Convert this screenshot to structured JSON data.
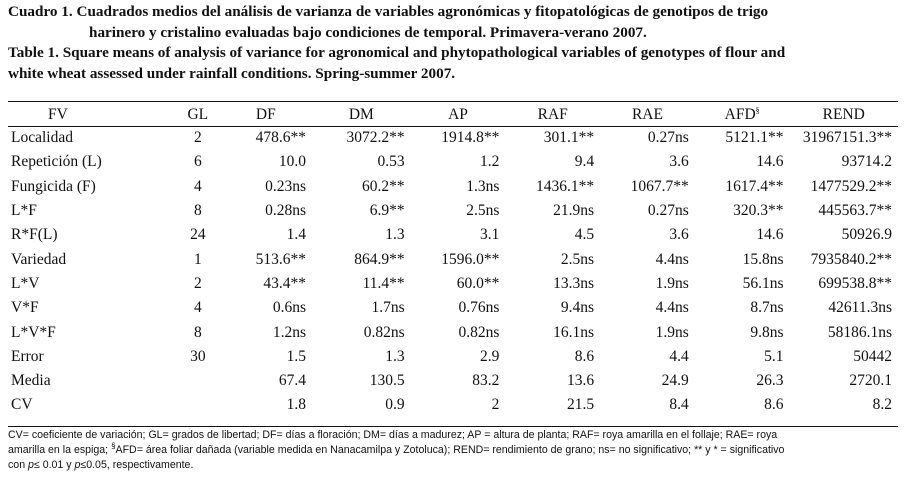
{
  "caption": {
    "es_line1": "Cuadro 1. Cuadrados medios del análisis de varianza de variables agronómicas y fitopatológicas de genotipos de trigo",
    "es_line2": "harinero y cristalino evaluadas bajo condiciones de temporal. Primavera-verano 2007.",
    "en_line1": "Table 1. Square means of analysis of variance for agronomical and phytopathological variables of genotypes of flour and",
    "en_line2": "white wheat assessed under rainfall conditions. Spring-summer 2007."
  },
  "table": {
    "headers": {
      "fv": "FV",
      "gl": "GL",
      "df": "DF",
      "dm": "DM",
      "ap": "AP",
      "raf": "RAF",
      "rae": "RAE",
      "afd": "AFD",
      "afd_sup": "§",
      "rend": "REND"
    },
    "rows": [
      {
        "fv": "Localidad",
        "gl": "2",
        "df": "478.6**",
        "dm": "3072.2**",
        "ap": "1914.8**",
        "raf": "301.1**",
        "rae": "0.27ns",
        "afd": "5121.1**",
        "rend": "31967151.3**"
      },
      {
        "fv": "Repetición (L)",
        "gl": "6",
        "df": "10.0",
        "dm": "0.53",
        "ap": "1.2",
        "raf": "9.4",
        "rae": "3.6",
        "afd": "14.6",
        "rend": "93714.2"
      },
      {
        "fv": "Fungicida (F)",
        "gl": "4",
        "df": "0.23ns",
        "dm": "60.2**",
        "ap": "1.3ns",
        "raf": "1436.1**",
        "rae": "1067.7**",
        "afd": "1617.4**",
        "rend": "1477529.2**"
      },
      {
        "fv": "L*F",
        "gl": "8",
        "df": "0.28ns",
        "dm": "6.9**",
        "ap": "2.5ns",
        "raf": "21.9ns",
        "rae": "0.27ns",
        "afd": "320.3**",
        "rend": "445563.7**"
      },
      {
        "fv": "R*F(L)",
        "gl": "24",
        "df": "1.4",
        "dm": "1.3",
        "ap": "3.1",
        "raf": "4.5",
        "rae": "3.6",
        "afd": "14.6",
        "rend": "50926.9"
      },
      {
        "fv": "Variedad",
        "gl": "1",
        "df": "513.6**",
        "dm": "864.9**",
        "ap": "1596.0**",
        "raf": "2.5ns",
        "rae": "4.4ns",
        "afd": "15.8ns",
        "rend": "7935840.2**"
      },
      {
        "fv": "L*V",
        "gl": "2",
        "df": "43.4**",
        "dm": "11.4**",
        "ap": "60.0**",
        "raf": "13.3ns",
        "rae": "1.9ns",
        "afd": "56.1ns",
        "rend": "699538.8**"
      },
      {
        "fv": "V*F",
        "gl": "4",
        "df": "0.6ns",
        "dm": "1.7ns",
        "ap": "0.76ns",
        "raf": "9.4ns",
        "rae": "4.4ns",
        "afd": "8.7ns",
        "rend": "42611.3ns"
      },
      {
        "fv": "L*V*F",
        "gl": "8",
        "df": "1.2ns",
        "dm": "0.82ns",
        "ap": "0.82ns",
        "raf": "16.1ns",
        "rae": "1.9ns",
        "afd": "9.8ns",
        "rend": "58186.1ns"
      },
      {
        "fv": "Error",
        "gl": "30",
        "df": "1.5",
        "dm": "1.3",
        "ap": "2.9",
        "raf": "8.6",
        "rae": "4.4",
        "afd": "5.1",
        "rend": "50442"
      },
      {
        "fv": "Media",
        "gl": "",
        "df": "67.4",
        "dm": "130.5",
        "ap": "83.2",
        "raf": "13.6",
        "rae": "24.9",
        "afd": "26.3",
        "rend": "2720.1"
      },
      {
        "fv": "CV",
        "gl": "",
        "df": "1.8",
        "dm": "0.9",
        "ap": "2",
        "raf": "21.5",
        "rae": "8.4",
        "afd": "8.6",
        "rend": "8.2"
      }
    ]
  },
  "footnote": {
    "line1": "CV= coeficiente de variación; GL= grados de libertad; DF= días a floración; DM= días a madurez; AP = altura de planta; RAF= roya amarilla en el follaje; RAE= roya",
    "line2_a": "amarilla en la espiga; ",
    "line2_sup": "§",
    "line2_b": "AFD= área foliar dañada (variable medida en Nanacamilpa y Zotoluca); REND= rendimiento de grano; ns= no significativo; ** y * = significativo",
    "line3_a": "con ",
    "line3_p1": "p",
    "line3_b": "≤ 0.01 y ",
    "line3_p2": "p",
    "line3_c": "≤0.05, respectivamente."
  }
}
